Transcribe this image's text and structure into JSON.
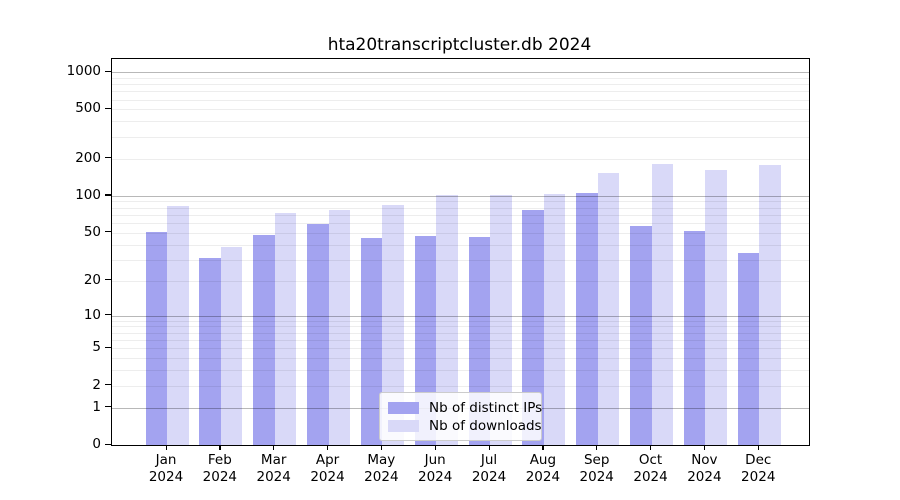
{
  "chart_data": {
    "type": "bar",
    "title": "hta20transcriptcluster.db 2024",
    "xlabel": "",
    "ylabel": "",
    "scale": "log1p",
    "ylim": [
      0,
      1270
    ],
    "grid": "on",
    "legend_position": "bottom-center-inside",
    "categories": [
      "Jan 2024",
      "Feb 2024",
      "Mar 2024",
      "Apr 2024",
      "May 2024",
      "Jun 2024",
      "Jul 2024",
      "Aug 2024",
      "Sep 2024",
      "Oct 2024",
      "Nov 2024",
      "Dec 2024"
    ],
    "series": [
      {
        "name": "Nb of distinct IPs",
        "color": "#a3a3f0",
        "values": [
          51,
          31,
          48,
          59,
          45,
          47,
          46,
          77,
          105,
          57,
          52,
          34
        ]
      },
      {
        "name": "Nb of downloads",
        "color": "#d9d9f8",
        "values": [
          82,
          38,
          73,
          77,
          84,
          102,
          101,
          104,
          153,
          180,
          162,
          178
        ]
      }
    ],
    "yticks": [
      0,
      1,
      2,
      5,
      10,
      20,
      50,
      100,
      200,
      500,
      1000
    ],
    "major_gridline_values": [
      1,
      10,
      100,
      1000
    ],
    "minor_gridline_values": [
      2,
      3,
      4,
      5,
      6,
      7,
      8,
      9,
      20,
      30,
      40,
      50,
      60,
      70,
      80,
      90,
      200,
      300,
      400,
      500,
      600,
      700,
      800,
      900
    ]
  },
  "colors": {
    "background": "#ffffff",
    "axis": "#000000",
    "major_grid": "#b5b5b5",
    "minor_grid": "#ececec",
    "legend_border": "#cccccc"
  }
}
